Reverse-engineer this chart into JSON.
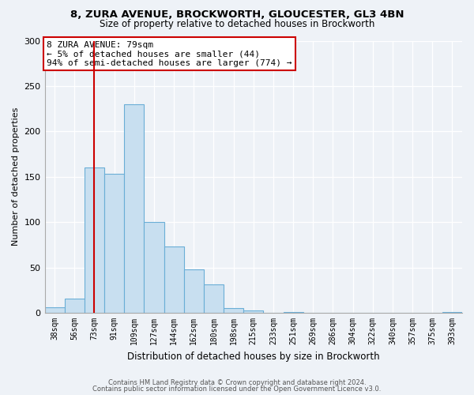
{
  "title": "8, ZURA AVENUE, BROCKWORTH, GLOUCESTER, GL3 4BN",
  "subtitle": "Size of property relative to detached houses in Brockworth",
  "xlabel": "Distribution of detached houses by size in Brockworth",
  "ylabel": "Number of detached properties",
  "bar_color": "#c8dff0",
  "bar_edge_color": "#6aaed6",
  "background_color": "#eef2f7",
  "categories": [
    "38sqm",
    "56sqm",
    "73sqm",
    "91sqm",
    "109sqm",
    "127sqm",
    "144sqm",
    "162sqm",
    "180sqm",
    "198sqm",
    "215sqm",
    "233sqm",
    "251sqm",
    "269sqm",
    "286sqm",
    "304sqm",
    "322sqm",
    "340sqm",
    "357sqm",
    "375sqm",
    "393sqm"
  ],
  "values": [
    6,
    16,
    160,
    153,
    230,
    100,
    73,
    48,
    31,
    5,
    3,
    0,
    1,
    0,
    0,
    0,
    0,
    0,
    0,
    0,
    1
  ],
  "vline_x": 2,
  "vline_color": "#cc0000",
  "annotation_title": "8 ZURA AVENUE: 79sqm",
  "annotation_line1": "← 5% of detached houses are smaller (44)",
  "annotation_line2": "94% of semi-detached houses are larger (774) →",
  "annotation_box_color": "#ffffff",
  "annotation_box_edge": "#cc0000",
  "ylim": [
    0,
    300
  ],
  "yticks": [
    0,
    50,
    100,
    150,
    200,
    250,
    300
  ],
  "footnote1": "Contains HM Land Registry data © Crown copyright and database right 2024.",
  "footnote2": "Contains public sector information licensed under the Open Government Licence v3.0."
}
